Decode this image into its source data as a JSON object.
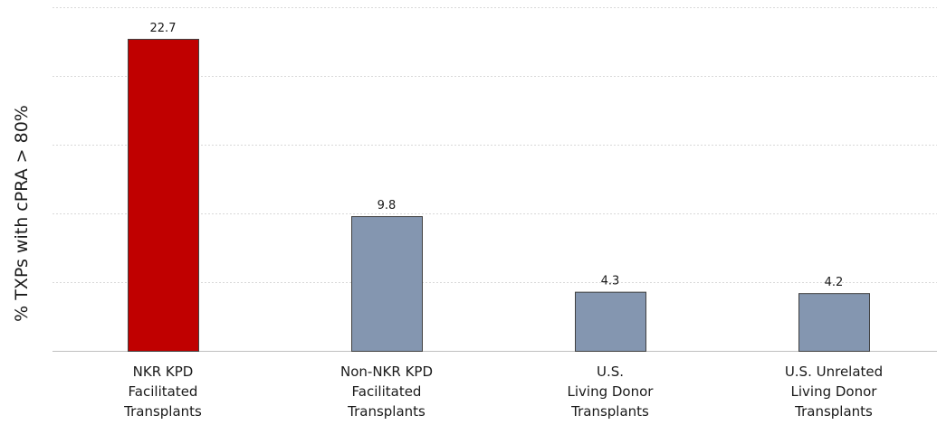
{
  "chart_data": {
    "type": "bar",
    "ylabel": "% TXPs with cPRA > 80%",
    "xlabel": "",
    "categories": [
      [
        "NKR KPD",
        "Facilitated",
        "Transplants"
      ],
      [
        "Non-NKR KPD",
        "Facilitated",
        "Transplants"
      ],
      [
        "U.S.",
        "Living Donor",
        "Transplants"
      ],
      [
        "U.S. Unrelated",
        "Living Donor",
        "Transplants"
      ]
    ],
    "values": [
      22.7,
      9.8,
      4.3,
      4.2
    ],
    "value_labels": [
      "22.7",
      "9.8",
      "4.3",
      "4.2"
    ],
    "bar_colors": [
      "#c00000",
      "#8496b0",
      "#8496b0",
      "#8496b0"
    ],
    "ylim": [
      0,
      25
    ],
    "gridlines": [
      5,
      10,
      15,
      20,
      25
    ],
    "grid": true,
    "legend": "none"
  }
}
